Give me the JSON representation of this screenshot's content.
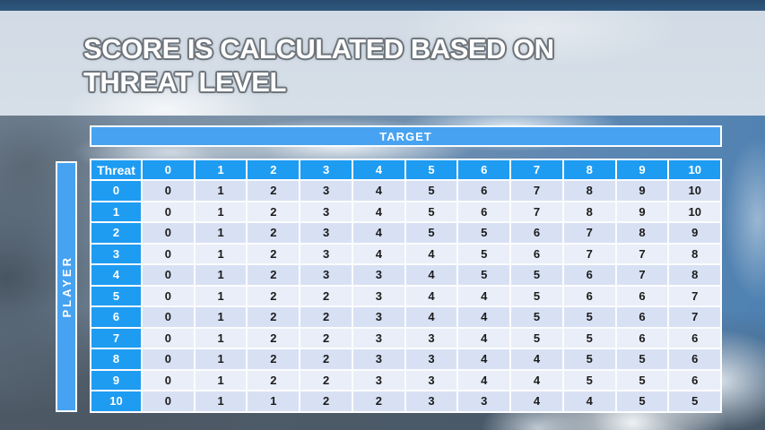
{
  "title": {
    "line1": "SCORE IS CALCULATED BASED ON",
    "line2": "THREAT LEVEL"
  },
  "chart_data": {
    "type": "table",
    "title": "Score matrix: player threat level vs target threat level",
    "target_label": "TARGET",
    "player_label": "PLAYER",
    "corner_label": "Threat",
    "column_headers": [
      "0",
      "1",
      "2",
      "3",
      "4",
      "5",
      "6",
      "7",
      "8",
      "9",
      "10"
    ],
    "rows": [
      {
        "threat": "0",
        "values": [
          0,
          1,
          2,
          3,
          4,
          5,
          6,
          7,
          8,
          9,
          10
        ]
      },
      {
        "threat": "1",
        "values": [
          0,
          1,
          2,
          3,
          4,
          5,
          6,
          7,
          8,
          9,
          10
        ]
      },
      {
        "threat": "2",
        "values": [
          0,
          1,
          2,
          3,
          4,
          5,
          5,
          6,
          7,
          8,
          9
        ]
      },
      {
        "threat": "3",
        "values": [
          0,
          1,
          2,
          3,
          4,
          4,
          5,
          6,
          7,
          7,
          8
        ]
      },
      {
        "threat": "4",
        "values": [
          0,
          1,
          2,
          3,
          3,
          4,
          5,
          5,
          6,
          7,
          8
        ]
      },
      {
        "threat": "5",
        "values": [
          0,
          1,
          2,
          2,
          3,
          4,
          4,
          5,
          6,
          6,
          7
        ]
      },
      {
        "threat": "6",
        "values": [
          0,
          1,
          2,
          2,
          3,
          4,
          4,
          5,
          5,
          6,
          7
        ]
      },
      {
        "threat": "7",
        "values": [
          0,
          1,
          2,
          2,
          3,
          3,
          4,
          5,
          5,
          6,
          6
        ]
      },
      {
        "threat": "8",
        "values": [
          0,
          1,
          2,
          2,
          3,
          3,
          4,
          4,
          5,
          5,
          6
        ]
      },
      {
        "threat": "9",
        "values": [
          0,
          1,
          2,
          2,
          3,
          3,
          4,
          4,
          5,
          5,
          6
        ]
      },
      {
        "threat": "10",
        "values": [
          0,
          1,
          1,
          2,
          2,
          3,
          3,
          4,
          4,
          5,
          5
        ]
      }
    ]
  },
  "colors": {
    "top_strip_navy": "#2C5378",
    "title_band": "#D5DEE7",
    "band_blue": "#47A3F1",
    "header_blue": "#1E9CF2",
    "row_even": "#D8E1F4",
    "row_odd": "#EAEEF8",
    "cell_text": "#1B1B1B"
  }
}
